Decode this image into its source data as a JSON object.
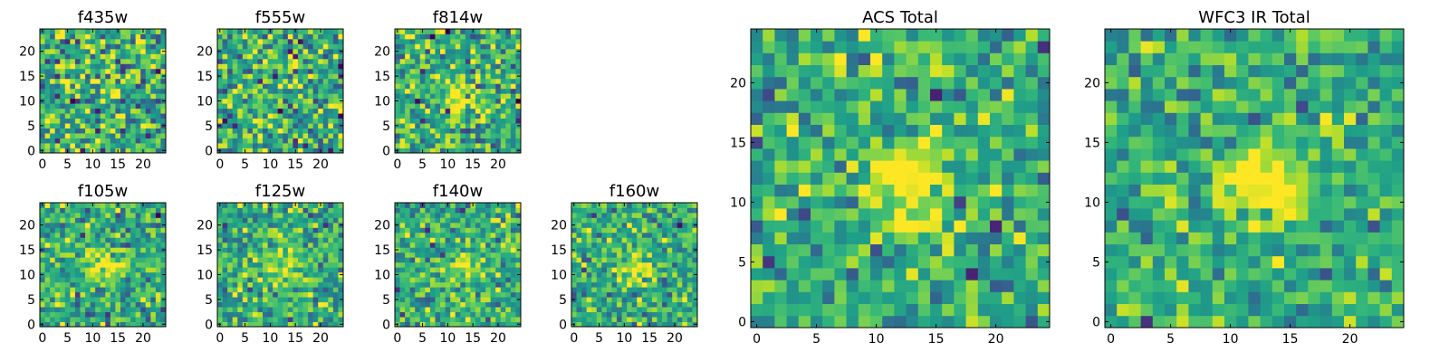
{
  "chart_data": [
    {
      "type": "heatmap",
      "title": "f435w",
      "xticks": [
        "0",
        "5",
        "10",
        "15",
        "20"
      ],
      "yticks": [
        "0",
        "5",
        "10",
        "15",
        "20"
      ],
      "grid": false,
      "note_values": "25x25 pixel cutout (data 0..24); peak near center faint",
      "blob": {
        "x": 13,
        "y": 12,
        "amp": 0.05
      },
      "noise": 0.23,
      "seed": 11
    },
    {
      "type": "heatmap",
      "title": "f555w",
      "xticks": [
        "0",
        "5",
        "10",
        "15",
        "20"
      ],
      "yticks": [
        "0",
        "5",
        "10",
        "15",
        "20"
      ],
      "grid": false,
      "blob": {
        "x": 13,
        "y": 12,
        "amp": 0.05
      },
      "noise": 0.23,
      "seed": 23
    },
    {
      "type": "heatmap",
      "title": "f814w",
      "xticks": [
        "0",
        "5",
        "10",
        "15",
        "20"
      ],
      "yticks": [
        "0",
        "5",
        "10",
        "15",
        "20"
      ],
      "grid": false,
      "blob": {
        "x": 12.5,
        "y": 11,
        "amp": 0.42
      },
      "noise": 0.2,
      "seed": 37
    },
    {
      "type": "heatmap",
      "title": "f105w",
      "xticks": [
        "0",
        "5",
        "10",
        "15",
        "20"
      ],
      "yticks": [
        "0",
        "5",
        "10",
        "15",
        "20"
      ],
      "grid": false,
      "blob": {
        "x": 13,
        "y": 12,
        "amp": 0.35
      },
      "noise": 0.17,
      "seed": 41
    },
    {
      "type": "heatmap",
      "title": "f125w",
      "xticks": [
        "0",
        "5",
        "10",
        "15",
        "20"
      ],
      "yticks": [
        "0",
        "5",
        "10",
        "15",
        "20"
      ],
      "grid": false,
      "blob": {
        "x": 13,
        "y": 11,
        "amp": 0.25
      },
      "noise": 0.18,
      "seed": 53
    },
    {
      "type": "heatmap",
      "title": "f140w",
      "xticks": [
        "0",
        "5",
        "10",
        "15",
        "20"
      ],
      "yticks": [
        "0",
        "5",
        "10",
        "15",
        "20"
      ],
      "grid": false,
      "blob": {
        "x": 13,
        "y": 11,
        "amp": 0.3
      },
      "noise": 0.18,
      "seed": 67
    },
    {
      "type": "heatmap",
      "title": "f160w",
      "xticks": [
        "0",
        "5",
        "10",
        "15",
        "20"
      ],
      "yticks": [
        "0",
        "5",
        "10",
        "15",
        "20"
      ],
      "grid": false,
      "blob": {
        "x": 12,
        "y": 12,
        "amp": 0.35
      },
      "noise": 0.17,
      "seed": 71
    },
    {
      "type": "heatmap",
      "title": "ACS Total",
      "xticks": [
        "0",
        "5",
        "10",
        "15",
        "20"
      ],
      "yticks": [
        "0",
        "5",
        "10",
        "15",
        "20"
      ],
      "grid": false,
      "blob": {
        "x": 12.5,
        "y": 11.5,
        "amp": 0.45
      },
      "noise": 0.17,
      "seed": 83
    },
    {
      "type": "heatmap",
      "title": "WFC3 IR Total",
      "xticks": [
        "0",
        "5",
        "10",
        "15",
        "20"
      ],
      "yticks": [
        "0",
        "5",
        "10",
        "15",
        "20"
      ],
      "grid": false,
      "blob": {
        "x": 12.5,
        "y": 11.5,
        "amp": 0.5
      },
      "noise": 0.14,
      "seed": 97
    }
  ],
  "colormap": "viridis"
}
